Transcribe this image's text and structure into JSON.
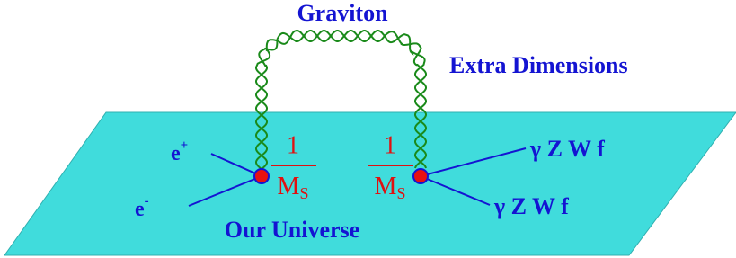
{
  "graviton_label": "Graviton",
  "extra_dimensions_label": "Extra Dimensions",
  "plane_label": "Our Universe",
  "incoming": [
    {
      "base": "e",
      "sup": "+"
    },
    {
      "base": "e",
      "sup": "-"
    }
  ],
  "couplings": [
    {
      "numerator": "1",
      "denominator": {
        "base": "M",
        "sub": "S"
      }
    },
    {
      "numerator": "1",
      "denominator": {
        "base": "M",
        "sub": "S"
      }
    }
  ],
  "outgoing": [
    "γ Z W f",
    "γ Z W f"
  ]
}
